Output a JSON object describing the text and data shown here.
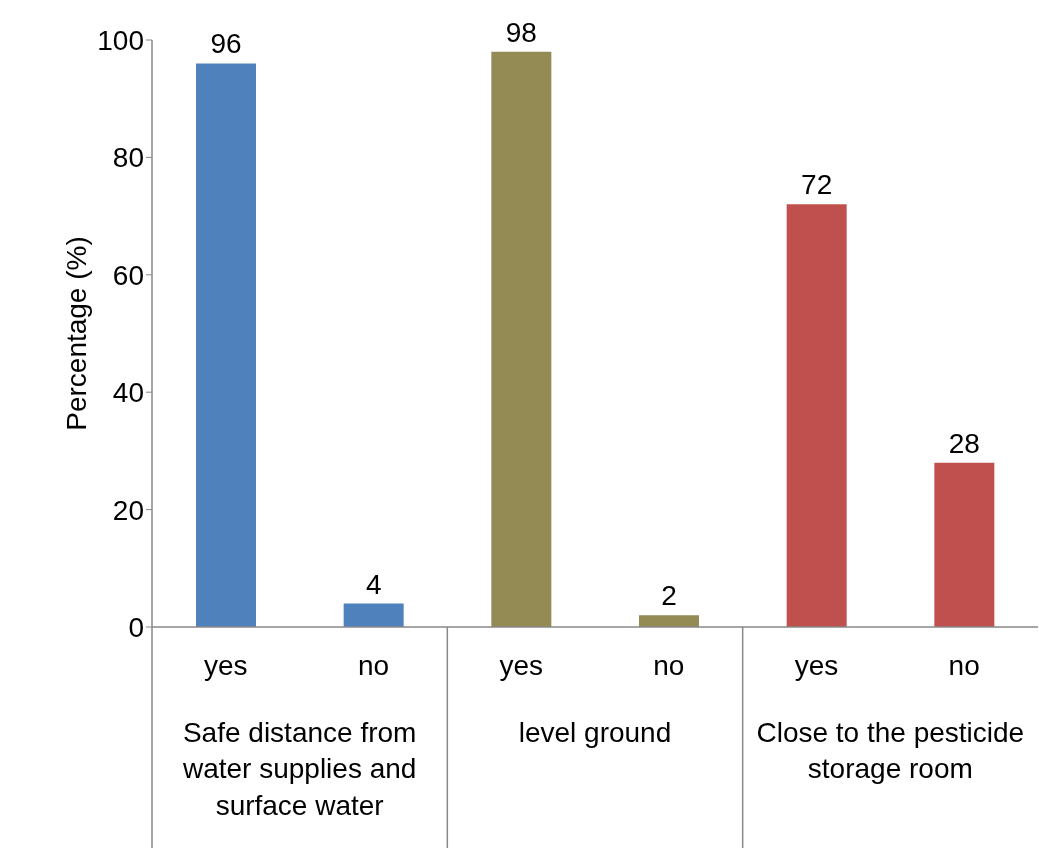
{
  "chart_data": {
    "type": "bar",
    "ylabel": "Percentage (%)",
    "categories": [
      "yes",
      "no",
      "yes",
      "no",
      "yes",
      "no"
    ],
    "values": [
      96,
      4,
      98,
      2,
      72,
      28
    ],
    "colors": [
      "#4f81bd",
      "#4f81bd",
      "#948a54",
      "#948a54",
      "#c0504d",
      "#c0504d"
    ],
    "annotations": [
      "Safe distance from water supplies and surface water",
      "level ground",
      "Close to the pesticide storage room"
    ],
    "ylim": [
      0,
      100
    ],
    "yticks": [
      0,
      20,
      40,
      60,
      80,
      100
    ],
    "grid": false,
    "legend": false,
    "data_labels": true
  }
}
